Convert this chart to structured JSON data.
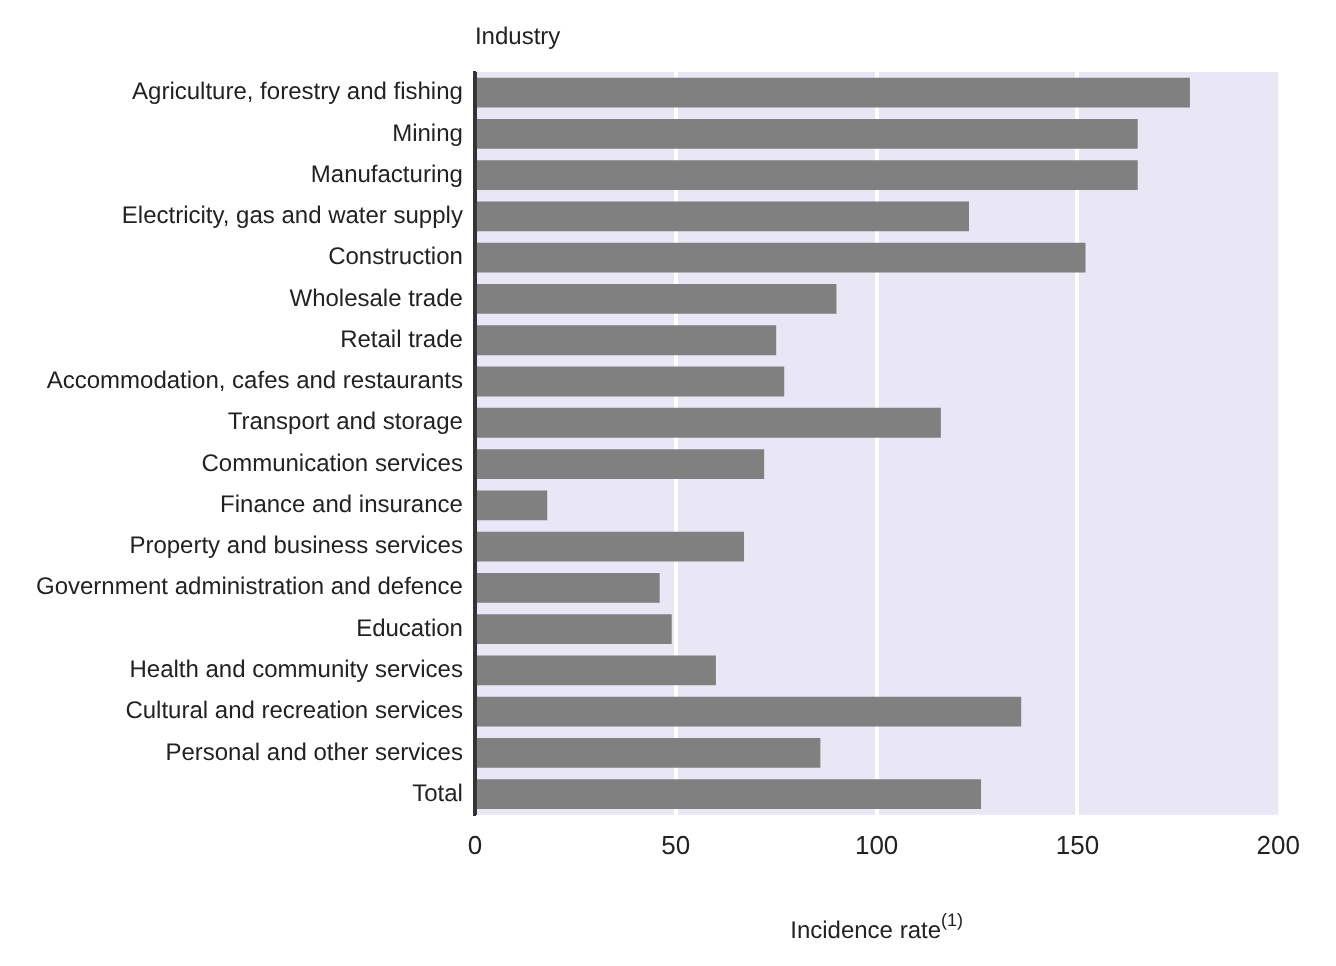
{
  "chart_data": {
    "type": "bar",
    "orientation": "horizontal",
    "ylabel": "Industry",
    "xlabel": "Incidence rate$^{(1)}$",
    "categories": [
      "Agriculture, forestry and fishing",
      "Mining",
      "Manufacturing",
      "Electricity, gas and water supply",
      "Construction",
      "Wholesale trade",
      "Retail trade",
      "Accommodation, cafes and restaurants",
      "Transport and storage",
      "Communication services",
      "Finance and insurance",
      "Property and business services",
      "Government administration and defence",
      "Education",
      "Health and community services",
      "Cultural and recreation services",
      "Personal and other services",
      "Total"
    ],
    "values": [
      178,
      165,
      165,
      123,
      152,
      90,
      75,
      77,
      116,
      72,
      18,
      67,
      46,
      49,
      60,
      136,
      86,
      126
    ],
    "color": "#808080",
    "xlim": [
      0,
      200
    ],
    "xticks": [
      0,
      50,
      100,
      150,
      200
    ],
    "grid": "x",
    "legend": false
  }
}
